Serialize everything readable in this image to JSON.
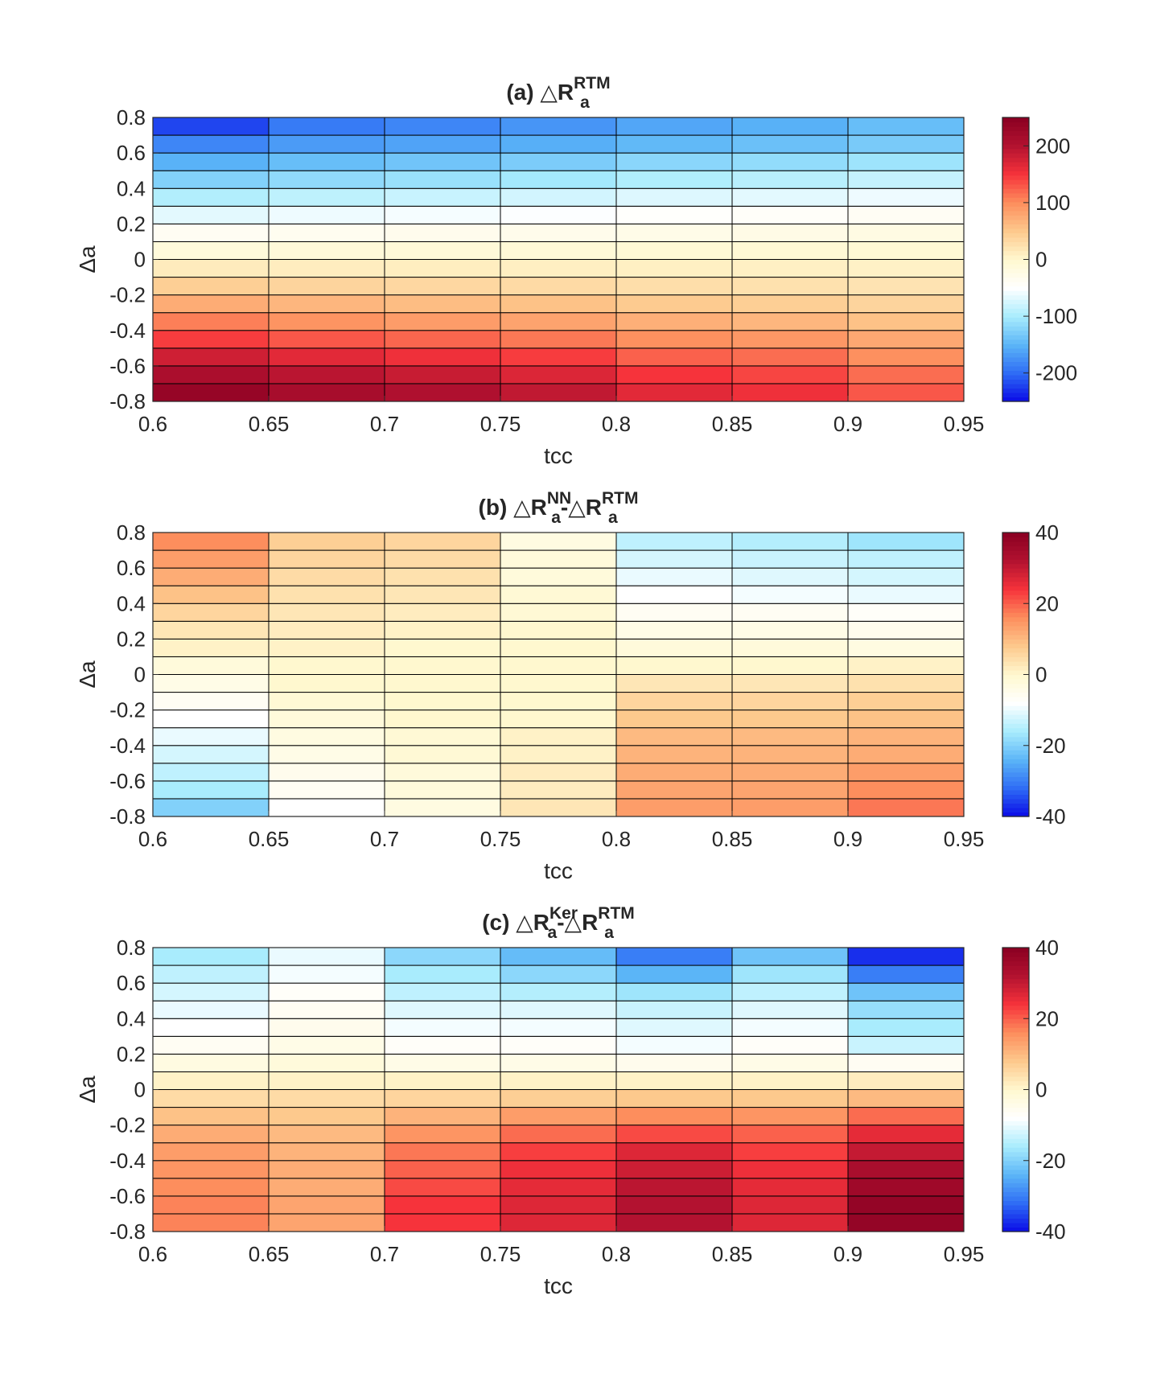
{
  "colormap": {
    "name": "diverging blue-white-red",
    "stops": [
      "#0a0ae6",
      "#2e6cf5",
      "#5bb5f7",
      "#a9ecfd",
      "#ffffff",
      "#fff8cf",
      "#fdc98d",
      "#fd8e5d",
      "#f6333b",
      "#b31230",
      "#8a0022"
    ]
  },
  "chart_data": [
    {
      "id": "a",
      "type": "heatmap",
      "title_prefix": "(a) ",
      "title_parts": [
        {
          "op": "△",
          "base": "R",
          "sup": "RTM",
          "sub": "a"
        }
      ],
      "xlabel": "tcc",
      "ylabel": "Δa",
      "x_edges": [
        0.6,
        0.65,
        0.7,
        0.75,
        0.8,
        0.85,
        0.9,
        0.95
      ],
      "y_edges": [
        -0.8,
        -0.7,
        -0.6,
        -0.5,
        -0.4,
        -0.3,
        -0.2,
        -0.1,
        0,
        0.1,
        0.2,
        0.3,
        0.4,
        0.5,
        0.6,
        0.7,
        0.8
      ],
      "xticks": [
        "0.6",
        "0.65",
        "0.7",
        "0.75",
        "0.8",
        "0.85",
        "0.9",
        "0.95"
      ],
      "yticks": [
        "-0.8",
        "-0.6",
        "-0.4",
        "-0.2",
        "0",
        "0.2",
        "0.4",
        "0.6",
        "0.8"
      ],
      "xlim": [
        0.6,
        0.95
      ],
      "ylim": [
        -0.8,
        0.8
      ],
      "clim": [
        -250,
        250
      ],
      "colorbar_ticks": [
        "-200",
        "-100",
        "0",
        "100",
        "200"
      ],
      "values": [
        [
          235,
          215,
          205,
          190,
          165,
          155,
          130
        ],
        [
          210,
          195,
          185,
          170,
          150,
          140,
          118
        ],
        [
          180,
          165,
          155,
          145,
          125,
          118,
          98
        ],
        [
          145,
          130,
          122,
          112,
          98,
          92,
          78
        ],
        [
          108,
          95,
          88,
          82,
          72,
          66,
          56
        ],
        [
          75,
          66,
          60,
          56,
          48,
          44,
          38
        ],
        [
          44,
          38,
          35,
          32,
          28,
          25,
          22
        ],
        [
          14,
          12,
          11,
          10,
          9,
          8,
          7
        ],
        [
          -12,
          -10,
          -9,
          -8,
          -7,
          -6,
          -5
        ],
        [
          -38,
          -34,
          -31,
          -29,
          -26,
          -24,
          -21
        ],
        [
          -66,
          -60,
          -56,
          -52,
          -47,
          -44,
          -39
        ],
        [
          -95,
          -88,
          -82,
          -76,
          -70,
          -66,
          -60
        ],
        [
          -125,
          -116,
          -110,
          -103,
          -96,
          -91,
          -84
        ],
        [
          -152,
          -142,
          -136,
          -129,
          -120,
          -115,
          -107
        ],
        [
          -182,
          -168,
          -162,
          -154,
          -146,
          -140,
          -131
        ],
        [
          -220,
          -190,
          -182,
          -172,
          -160,
          -153,
          -142
        ]
      ]
    },
    {
      "id": "b",
      "type": "heatmap",
      "title_prefix": "(b) ",
      "title_parts": [
        {
          "op": "△",
          "base": "R",
          "sup": "NN",
          "sub": "a"
        },
        {
          "op": "-△",
          "base": "R",
          "sup": "RTM",
          "sub": "a"
        }
      ],
      "xlabel": "tcc",
      "ylabel": "Δa",
      "x_edges": [
        0.6,
        0.65,
        0.7,
        0.75,
        0.8,
        0.85,
        0.9,
        0.95
      ],
      "y_edges": [
        -0.8,
        -0.7,
        -0.6,
        -0.5,
        -0.4,
        -0.3,
        -0.2,
        -0.1,
        0,
        0.1,
        0.2,
        0.3,
        0.4,
        0.5,
        0.6,
        0.7,
        0.8
      ],
      "xticks": [
        "0.6",
        "0.65",
        "0.7",
        "0.75",
        "0.8",
        "0.85",
        "0.9",
        "0.95"
      ],
      "yticks": [
        "-0.8",
        "-0.6",
        "-0.4",
        "-0.2",
        "0",
        "0.2",
        "0.4",
        "0.6",
        "0.8"
      ],
      "xlim": [
        0.6,
        0.95
      ],
      "ylim": [
        -0.8,
        0.8
      ],
      "clim": [
        -40,
        40
      ],
      "colorbar_ticks": [
        "-40",
        "-20",
        "0",
        "20",
        "40"
      ],
      "values": [
        [
          -20,
          -8,
          -3,
          3,
          14,
          14,
          18
        ],
        [
          -16,
          -6,
          -2,
          2,
          13,
          13,
          16
        ],
        [
          -14,
          -5,
          -2,
          2,
          12,
          12,
          14
        ],
        [
          -12,
          -4,
          -1,
          1,
          11,
          11,
          12
        ],
        [
          -10,
          -3,
          -1,
          1,
          10,
          10,
          11
        ],
        [
          -8,
          -2,
          0,
          0,
          8,
          8,
          9
        ],
        [
          -6,
          -1,
          0,
          0,
          6,
          6,
          7
        ],
        [
          -4,
          0,
          0,
          0,
          3,
          3,
          4
        ],
        [
          -2,
          0,
          0,
          0,
          0,
          0,
          1
        ],
        [
          1,
          1,
          0,
          0,
          -2,
          -2,
          -3
        ],
        [
          3,
          2,
          1,
          0,
          -4,
          -4,
          -5
        ],
        [
          6,
          3,
          2,
          -1,
          -6,
          -6,
          -7
        ],
        [
          9,
          4,
          3,
          -1,
          -8,
          -9,
          -10
        ],
        [
          12,
          5,
          4,
          -2,
          -10,
          -11,
          -12
        ],
        [
          14,
          6,
          5,
          -2,
          -12,
          -13,
          -14
        ],
        [
          16,
          7,
          6,
          -3,
          -14,
          -15,
          -17
        ]
      ]
    },
    {
      "id": "c",
      "type": "heatmap",
      "title_prefix": "(c) ",
      "title_parts": [
        {
          "op": "△",
          "base": "R",
          "sup": "Ker",
          "sub": "a"
        },
        {
          "op": "-△",
          "base": "R",
          "sup": "RTM",
          "sub": "a"
        }
      ],
      "xlabel": "tcc",
      "ylabel": "Δa",
      "x_edges": [
        0.6,
        0.65,
        0.7,
        0.75,
        0.8,
        0.85,
        0.9,
        0.95
      ],
      "y_edges": [
        -0.8,
        -0.7,
        -0.6,
        -0.5,
        -0.4,
        -0.3,
        -0.2,
        -0.1,
        0,
        0.1,
        0.2,
        0.3,
        0.4,
        0.5,
        0.6,
        0.7,
        0.8
      ],
      "xticks": [
        "0.6",
        "0.65",
        "0.7",
        "0.75",
        "0.8",
        "0.85",
        "0.9",
        "0.95"
      ],
      "yticks": [
        "-0.8",
        "-0.6",
        "-0.4",
        "-0.2",
        "0",
        "0.2",
        "0.4",
        "0.6",
        "0.8"
      ],
      "xlim": [
        0.6,
        0.95
      ],
      "ylim": [
        -0.8,
        0.8
      ],
      "clim": [
        -40,
        40
      ],
      "colorbar_ticks": [
        "-40",
        "-20",
        "0",
        "20",
        "40"
      ],
      "values": [
        [
          17,
          13,
          24,
          27,
          32,
          27,
          38
        ],
        [
          17,
          13,
          24,
          27,
          32,
          27,
          38
        ],
        [
          16,
          12,
          22,
          26,
          31,
          26,
          36
        ],
        [
          15,
          12,
          20,
          25,
          29,
          25,
          34
        ],
        [
          14,
          11,
          18,
          23,
          27,
          23,
          30
        ],
        [
          12,
          10,
          15,
          19,
          22,
          20,
          26
        ],
        [
          9,
          8,
          11,
          14,
          16,
          15,
          19
        ],
        [
          5,
          5,
          6,
          7,
          8,
          8,
          10
        ],
        [
          1,
          1,
          1,
          1,
          1,
          1,
          2
        ],
        [
          -3,
          -2,
          -4,
          -4,
          -5,
          -4,
          -6
        ],
        [
          -6,
          -4,
          -7,
          -7,
          -9,
          -7,
          -13
        ],
        [
          -8,
          -5,
          -9,
          -9,
          -11,
          -9,
          -16
        ],
        [
          -10,
          -6,
          -11,
          -11,
          -13,
          -11,
          -18
        ],
        [
          -12,
          -7,
          -14,
          -15,
          -17,
          -14,
          -22
        ],
        [
          -14,
          -9,
          -16,
          -19,
          -24,
          -17,
          -30
        ],
        [
          -16,
          -10,
          -19,
          -23,
          -30,
          -22,
          -37
        ]
      ]
    }
  ]
}
